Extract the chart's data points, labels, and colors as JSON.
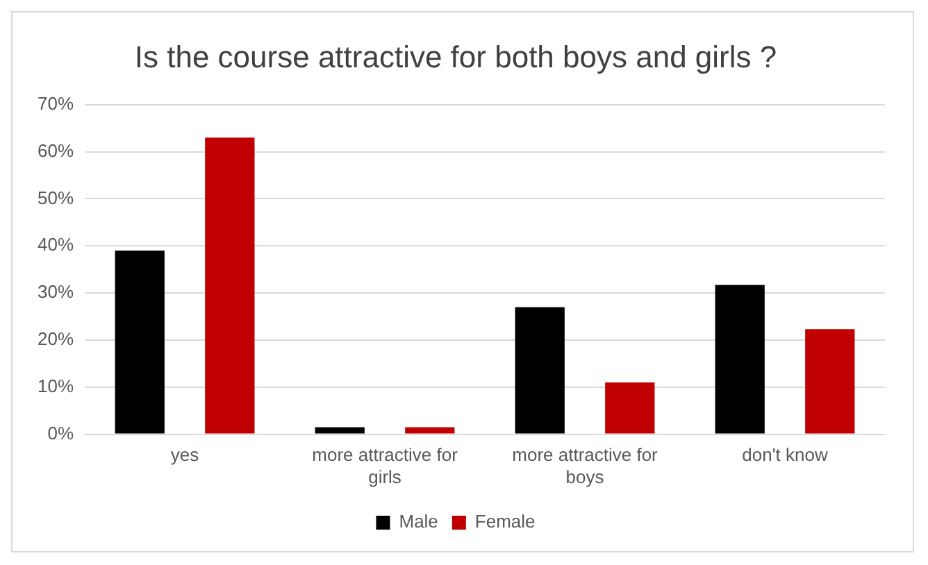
{
  "chart_data": {
    "type": "bar",
    "title": "Is the course attractive for both boys and girls ?",
    "categories": [
      "yes",
      "more attractive for girls",
      "more attractive for boys",
      "don't know"
    ],
    "series": [
      {
        "name": "Male",
        "color": "#000000",
        "values": [
          39,
          1.5,
          27,
          31.7
        ]
      },
      {
        "name": "Female",
        "color": "#c00000",
        "values": [
          63,
          1.5,
          11,
          22.3
        ]
      }
    ],
    "ylim": [
      0,
      70
    ],
    "yticks": [
      {
        "value": 0,
        "label": "0%"
      },
      {
        "value": 10,
        "label": "10%"
      },
      {
        "value": 20,
        "label": "20%"
      },
      {
        "value": 30,
        "label": "30%"
      },
      {
        "value": 40,
        "label": "40%"
      },
      {
        "value": 50,
        "label": "50%"
      },
      {
        "value": 60,
        "label": "60%"
      },
      {
        "value": 70,
        "label": "70%"
      }
    ],
    "grid": "y",
    "legend": "bottom"
  }
}
